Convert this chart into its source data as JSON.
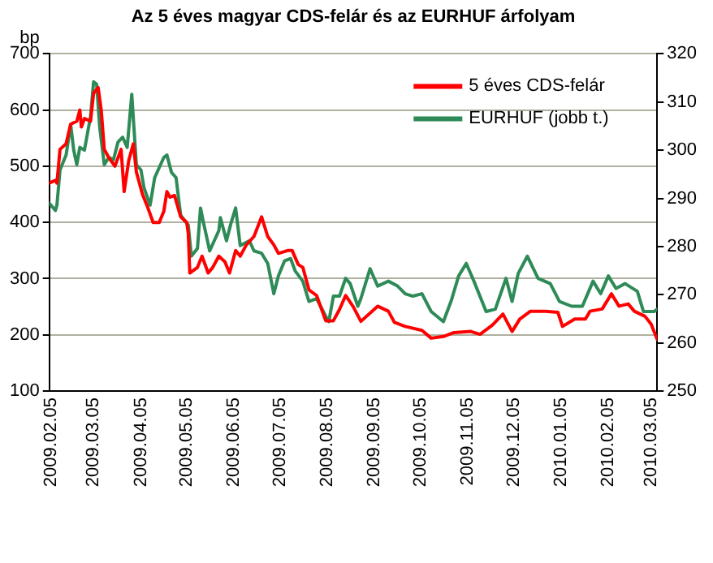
{
  "chart_data": {
    "type": "line",
    "title": "Az 5 éves magyar CDS-felár és az EURHUF árfolyam",
    "ylabel": "bp",
    "xlim": [
      "2009-02-05",
      "2010-03-10"
    ],
    "xticks": [
      {
        "value": "2009-02-05",
        "label": "2009.02.05"
      },
      {
        "value": "2009-03-05",
        "label": "2009.03.05"
      },
      {
        "value": "2009-04-05",
        "label": "2009.04.05"
      },
      {
        "value": "2009-05-05",
        "label": "2009.05.05"
      },
      {
        "value": "2009-06-05",
        "label": "2009.06.05"
      },
      {
        "value": "2009-07-05",
        "label": "2009.07.05"
      },
      {
        "value": "2009-08-05",
        "label": "2009.08.05"
      },
      {
        "value": "2009-09-05",
        "label": "2009.09.05"
      },
      {
        "value": "2009-10-05",
        "label": "2009.10.05"
      },
      {
        "value": "2009-11-05",
        "label": "2009.11.05"
      },
      {
        "value": "2009-12-05",
        "label": "2009.12.05"
      },
      {
        "value": "2010-01-05",
        "label": "2010.01.05"
      },
      {
        "value": "2010-02-05",
        "label": "2010.02.05"
      },
      {
        "value": "2010-03-05",
        "label": "2010.03.05"
      }
    ],
    "ylim": [
      100,
      700
    ],
    "yticks": [
      100,
      200,
      300,
      400,
      500,
      600,
      700
    ],
    "y2lim": [
      250,
      320
    ],
    "y2ticks": [
      250,
      260,
      270,
      280,
      290,
      300,
      310,
      320
    ],
    "grid": "y",
    "legend": "top right",
    "marker": "none",
    "line_style": "solid",
    "series": [
      {
        "name": "5 éves CDS-felár",
        "color": "#ff0000",
        "x": [
          "2009-02-05",
          "2009-02-09",
          "2009-02-10",
          "2009-02-12",
          "2009-02-16",
          "2009-02-19",
          "2009-02-23",
          "2009-02-25",
          "2009-02-26",
          "2009-02-28",
          "2009-03-04",
          "2009-03-06",
          "2009-03-09",
          "2009-03-11",
          "2009-03-13",
          "2009-03-16",
          "2009-03-20",
          "2009-03-24",
          "2009-03-26",
          "2009-03-29",
          "2009-04-01",
          "2009-04-03",
          "2009-04-07",
          "2009-04-10",
          "2009-04-14",
          "2009-04-18",
          "2009-04-21",
          "2009-04-23",
          "2009-04-25",
          "2009-04-28",
          "2009-05-02",
          "2009-05-06",
          "2009-05-07",
          "2009-05-08",
          "2009-05-13",
          "2009-05-16",
          "2009-05-20",
          "2009-05-23",
          "2009-05-27",
          "2009-05-31",
          "2009-06-03",
          "2009-06-07",
          "2009-06-10",
          "2009-06-14",
          "2009-06-19",
          "2009-06-24",
          "2009-06-28",
          "2009-07-02",
          "2009-07-05",
          "2009-07-11",
          "2009-07-14",
          "2009-07-18",
          "2009-07-21",
          "2009-07-25",
          "2009-07-30",
          "2009-08-05",
          "2009-08-10",
          "2009-08-14",
          "2009-08-18",
          "2009-08-23",
          "2009-08-28",
          "2009-09-08",
          "2009-09-15",
          "2009-09-19",
          "2009-09-26",
          "2009-10-07",
          "2009-10-13",
          "2009-10-21",
          "2009-10-28",
          "2009-11-08",
          "2009-11-14",
          "2009-11-22",
          "2009-11-29",
          "2009-12-05",
          "2009-12-10",
          "2009-12-17",
          "2009-12-27",
          "2010-01-04",
          "2010-01-07",
          "2010-01-15",
          "2010-01-22",
          "2010-01-25",
          "2010-02-02",
          "2010-02-08",
          "2010-02-13",
          "2010-02-19",
          "2010-02-23",
          "2010-03-02",
          "2010-03-06",
          "2010-03-10"
        ],
        "values": [
          470,
          475,
          470,
          530,
          540,
          575,
          580,
          600,
          570,
          585,
          580,
          630,
          640,
          600,
          530,
          515,
          500,
          530,
          455,
          510,
          540,
          490,
          450,
          430,
          400,
          400,
          420,
          455,
          445,
          448,
          410,
          400,
          380,
          310,
          320,
          340,
          310,
          320,
          340,
          330,
          310,
          350,
          340,
          360,
          375,
          410,
          375,
          360,
          345,
          350,
          350,
          325,
          320,
          280,
          270,
          225,
          225,
          245,
          270,
          250,
          224,
          251,
          242,
          222,
          215,
          208,
          194,
          197,
          204,
          206,
          201,
          217,
          237,
          206,
          228,
          242,
          242,
          240,
          215,
          228,
          228,
          242,
          246,
          273,
          251,
          255,
          242,
          233,
          219,
          192
        ]
      },
      {
        "name": "EURHUF (jobb t.)",
        "color": "#2e8b57",
        "axis": "y2",
        "x": [
          "2009-02-05",
          "2009-02-09",
          "2009-02-10",
          "2009-02-12",
          "2009-02-16",
          "2009-02-19",
          "2009-02-21",
          "2009-02-23",
          "2009-02-25",
          "2009-02-28",
          "2009-03-04",
          "2009-03-06",
          "2009-03-08",
          "2009-03-10",
          "2009-03-13",
          "2009-03-16",
          "2009-03-19",
          "2009-03-22",
          "2009-03-25",
          "2009-03-28",
          "2009-03-31",
          "2009-04-03",
          "2009-04-06",
          "2009-04-08",
          "2009-04-12",
          "2009-04-15",
          "2009-04-21",
          "2009-04-23",
          "2009-04-26",
          "2009-04-29",
          "2009-05-02",
          "2009-05-07",
          "2009-05-09",
          "2009-05-13",
          "2009-05-15",
          "2009-05-17",
          "2009-05-21",
          "2009-05-27",
          "2009-05-28",
          "2009-06-01",
          "2009-06-04",
          "2009-06-07",
          "2009-06-10",
          "2009-06-16",
          "2009-06-19",
          "2009-06-24",
          "2009-06-28",
          "2009-07-02",
          "2009-07-05",
          "2009-07-09",
          "2009-07-13",
          "2009-07-16",
          "2009-07-21",
          "2009-07-25",
          "2009-07-30",
          "2009-08-05",
          "2009-08-07",
          "2009-08-10",
          "2009-08-14",
          "2009-08-18",
          "2009-08-21",
          "2009-08-26",
          "2009-08-28",
          "2009-09-03",
          "2009-09-08",
          "2009-09-15",
          "2009-09-21",
          "2009-09-26",
          "2009-10-01",
          "2009-10-07",
          "2009-10-13",
          "2009-10-21",
          "2009-10-26",
          "2009-10-31",
          "2009-11-05",
          "2009-11-10",
          "2009-11-18",
          "2009-11-24",
          "2009-12-01",
          "2009-12-05",
          "2009-12-09",
          "2009-12-15",
          "2009-12-22",
          "2009-12-30",
          "2010-01-05",
          "2010-01-13",
          "2010-01-20",
          "2010-01-27",
          "2010-02-01",
          "2010-02-06",
          "2010-02-11",
          "2010-02-17",
          "2010-02-25",
          "2010-03-01",
          "2010-03-08",
          "2010-03-10"
        ],
        "values": [
          289,
          287.5,
          288.6,
          295.9,
          299,
          305.3,
          300,
          297,
          300.6,
          300,
          307,
          314.2,
          313.7,
          304.8,
          297,
          298.5,
          298,
          301.7,
          302.7,
          300.6,
          311.6,
          297,
          295.9,
          292.2,
          288.6,
          294.3,
          298.5,
          299,
          295.4,
          294.3,
          286.5,
          284.4,
          278,
          279.6,
          288,
          284.9,
          279.1,
          283.3,
          286,
          281.2,
          284.9,
          288,
          280.2,
          281.2,
          279.1,
          278.6,
          276.5,
          270.2,
          273.9,
          277,
          277.5,
          274.9,
          272.8,
          268.6,
          269.2,
          265.5,
          264.4,
          269.7,
          269.7,
          273.4,
          272.3,
          267.6,
          269.2,
          275.4,
          271.8,
          272.8,
          271.8,
          270.2,
          269.7,
          270.2,
          266.5,
          264.4,
          268.6,
          273.9,
          276.5,
          272.8,
          266.5,
          267,
          273.4,
          268.6,
          274.4,
          278,
          273.4,
          272.3,
          268.6,
          267.6,
          267.6,
          272.8,
          270.2,
          273.9,
          271.3,
          272.3,
          270.7,
          266.5,
          266.5,
          267
        ]
      }
    ]
  }
}
